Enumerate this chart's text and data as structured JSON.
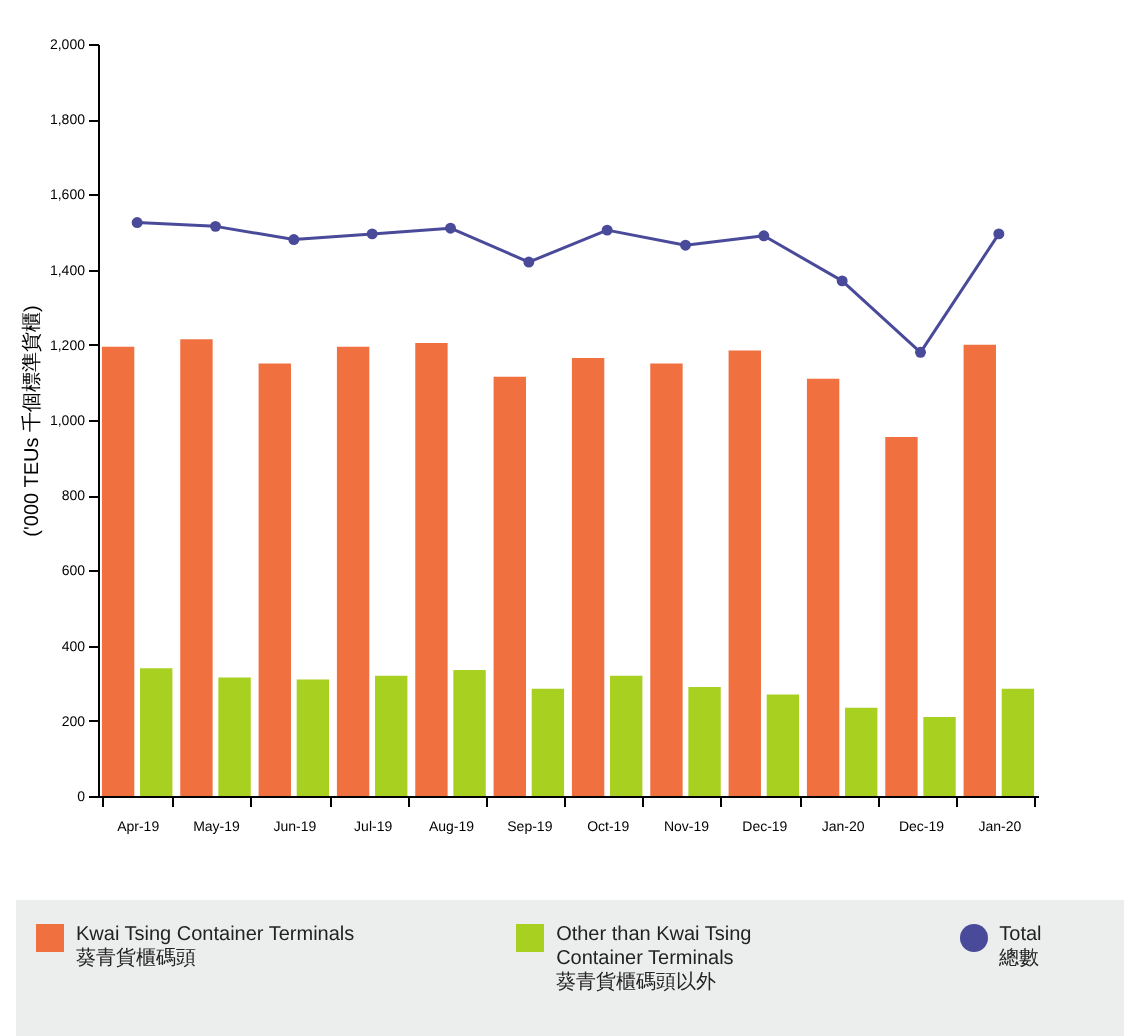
{
  "chart_data": {
    "type": "bar",
    "ylabel": "('000 TEUs 千個標準貨櫃)",
    "categories": [
      "Apr-19",
      "May-19",
      "Jun-19",
      "Jul-19",
      "Aug-19",
      "Sep-19",
      "Oct-19",
      "Nov-19",
      "Dec-19",
      "Jan-20",
      "Dec-19",
      "Jan-20"
    ],
    "series": [
      {
        "name": "Kwai Tsing Container Terminals\n葵青貨櫃碼頭",
        "color": "#f07040",
        "values": [
          1195,
          1215,
          1150,
          1195,
          1205,
          1115,
          1165,
          1150,
          1185,
          1110,
          955,
          1200
        ]
      },
      {
        "name": "Other than Kwai Tsing\nContainer Terminals\n葵青貨櫃碼頭以外",
        "color": "#a8d020",
        "values": [
          340,
          315,
          310,
          320,
          335,
          285,
          320,
          290,
          270,
          235,
          210,
          285
        ]
      },
      {
        "name": "Total\n總數",
        "type": "line",
        "color": "#4a4a9a",
        "values": [
          1525,
          1515,
          1480,
          1495,
          1510,
          1420,
          1505,
          1465,
          1490,
          1370,
          1180,
          1495
        ]
      }
    ],
    "ylim": [
      0,
      2000
    ],
    "yticks": [
      {
        "value": 0,
        "label": "0"
      },
      {
        "value": 200,
        "label": "200"
      },
      {
        "value": 400,
        "label": "400"
      },
      {
        "value": 600,
        "label": "600"
      },
      {
        "value": 800,
        "label": "800"
      },
      {
        "value": 1000,
        "label": "1,000"
      },
      {
        "value": 1200,
        "label": "1,200"
      },
      {
        "value": 1400,
        "label": "1,400"
      },
      {
        "value": 1600,
        "label": "1,600"
      },
      {
        "value": 1800,
        "label": "1,800"
      },
      {
        "value": 2000,
        "label": "2,000"
      }
    ],
    "grid": false,
    "legend": "bottom",
    "marker": "circle"
  }
}
